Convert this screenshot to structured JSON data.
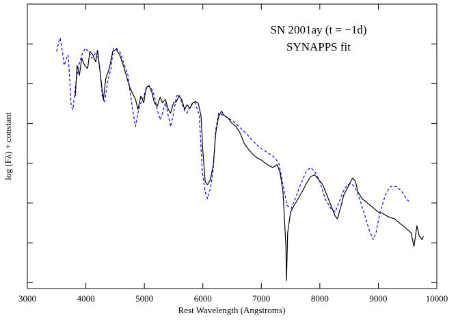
{
  "chart_data": {
    "type": "line",
    "annotations": [
      "SN 2001ay (t = −1d)",
      "SYNAPPS fit"
    ],
    "xlabel": "Rest Wavelength (Angstroms)",
    "ylabel": "log (Fλ) + constant",
    "xlim": [
      3000,
      10000
    ],
    "xticks": [
      3000,
      4000,
      5000,
      6000,
      7000,
      8000,
      9000,
      10000
    ],
    "ylim": [
      -0.15,
      7
    ],
    "yticks": [
      0,
      1,
      2,
      3,
      4,
      5,
      6
    ],
    "series": [
      {
        "color": "#000000",
        "dash": false,
        "x": [
          3820,
          3850,
          3890,
          3930,
          3980,
          4030,
          4070,
          4120,
          4170,
          4200,
          4250,
          4300,
          4340,
          4400,
          4460,
          4520,
          4580,
          4640,
          4690,
          4740,
          4790,
          4850,
          4890,
          4940,
          4990,
          5030,
          5080,
          5130,
          5170,
          5220,
          5270,
          5310,
          5360,
          5410,
          5450,
          5500,
          5550,
          5590,
          5640,
          5690,
          5730,
          5780,
          5830,
          5870,
          5920,
          5970,
          6000,
          6040,
          6080,
          6130,
          6180,
          6220,
          6270,
          6320,
          6360,
          6430,
          6500,
          6570,
          6640,
          6710,
          6780,
          6850,
          6920,
          7000,
          7060,
          7130,
          7200,
          7270,
          7320,
          7370,
          7420,
          7430,
          7450,
          7500,
          7560,
          7630,
          7700,
          7770,
          7840,
          7910,
          7980,
          8050,
          8120,
          8190,
          8260,
          8300,
          8350,
          8410,
          8470,
          8510,
          8560,
          8610,
          8650,
          8720,
          8790,
          8860,
          8930,
          9000,
          9070,
          9140,
          9210,
          9280,
          9350,
          9420,
          9490,
          9560,
          9610,
          9660,
          9700,
          9750,
          9770
        ],
        "values": [
          4.69,
          5.46,
          5.21,
          5.64,
          5.46,
          5.38,
          5.81,
          5.72,
          5.55,
          5.84,
          5.21,
          4.6,
          5.12,
          5.38,
          5.81,
          5.86,
          5.72,
          5.46,
          5.21,
          4.95,
          4.78,
          4.6,
          4.35,
          4.69,
          4.52,
          4.9,
          4.95,
          4.78,
          4.52,
          4.43,
          4.66,
          4.52,
          4.6,
          4.35,
          4.26,
          4.52,
          4.55,
          4.69,
          4.6,
          4.35,
          4.47,
          4.38,
          4.52,
          4.55,
          4.52,
          4.18,
          3.32,
          2.54,
          2.46,
          2.59,
          2.97,
          3.75,
          4.18,
          4.31,
          4.21,
          4.14,
          4.0,
          3.92,
          3.75,
          3.49,
          3.35,
          3.23,
          3.14,
          3.08,
          3.01,
          2.94,
          2.89,
          2.97,
          2.77,
          2.29,
          0.91,
          0.05,
          1.25,
          1.77,
          1.94,
          2.11,
          2.29,
          2.49,
          2.66,
          2.71,
          2.59,
          2.46,
          2.2,
          1.94,
          1.68,
          1.6,
          1.86,
          2.2,
          2.37,
          2.49,
          2.63,
          2.54,
          2.29,
          2.11,
          2.03,
          1.94,
          1.86,
          1.77,
          1.74,
          1.68,
          1.63,
          1.6,
          1.51,
          1.43,
          1.34,
          1.25,
          0.91,
          1.43,
          1.17,
          1.08,
          1.17
        ]
      },
      {
        "color": "#0000ff",
        "dash": true,
        "x": [
          3500,
          3540,
          3560,
          3600,
          3630,
          3670,
          3700,
          3750,
          3780,
          3830,
          3880,
          3930,
          3990,
          4050,
          4100,
          4140,
          4190,
          4240,
          4280,
          4320,
          4370,
          4430,
          4470,
          4520,
          4580,
          4640,
          4680,
          4720,
          4750,
          4800,
          4850,
          4890,
          4940,
          4990,
          5030,
          5080,
          5130,
          5170,
          5220,
          5270,
          5310,
          5360,
          5410,
          5450,
          5500,
          5550,
          5590,
          5640,
          5690,
          5730,
          5780,
          5830,
          5870,
          5940,
          5990,
          6040,
          6080,
          6130,
          6180,
          6220,
          6270,
          6340,
          6430,
          6530,
          6620,
          6740,
          6850,
          6970,
          7090,
          7200,
          7300,
          7370,
          7440,
          7510,
          7580,
          7670,
          7770,
          7840,
          7910,
          8000,
          8090,
          8190,
          8260,
          8330,
          8400,
          8470,
          8540,
          8610,
          8680,
          8770,
          8840,
          8910,
          8960,
          9030,
          9120,
          9210,
          9310,
          9400,
          9490,
          9540
        ],
        "values": [
          5.81,
          6.07,
          6.15,
          5.81,
          5.46,
          5.64,
          5.72,
          4.43,
          4.35,
          5.03,
          5.46,
          5.72,
          5.89,
          5.81,
          5.64,
          5.72,
          5.81,
          5.38,
          4.69,
          4.52,
          5.03,
          5.38,
          5.89,
          5.89,
          5.81,
          5.55,
          5.38,
          5.21,
          4.86,
          4.35,
          3.92,
          4.26,
          4.52,
          4.69,
          4.86,
          4.95,
          4.86,
          4.69,
          4.35,
          4.09,
          4.26,
          4.52,
          4.18,
          3.92,
          4.26,
          4.69,
          4.73,
          4.52,
          4.31,
          4.26,
          4.43,
          4.52,
          4.52,
          4.18,
          2.8,
          2.29,
          2.11,
          2.37,
          2.89,
          3.83,
          4.26,
          4.21,
          4.14,
          4.04,
          3.92,
          3.75,
          3.57,
          3.4,
          3.28,
          3.18,
          3.01,
          2.46,
          1.94,
          1.86,
          2.11,
          2.46,
          2.8,
          2.89,
          2.8,
          2.54,
          2.11,
          1.86,
          1.77,
          2.03,
          2.29,
          2.46,
          2.49,
          2.37,
          2.11,
          1.68,
          1.34,
          1.08,
          1.25,
          1.77,
          2.2,
          2.42,
          2.42,
          2.29,
          2.08,
          2.03
        ]
      }
    ]
  }
}
